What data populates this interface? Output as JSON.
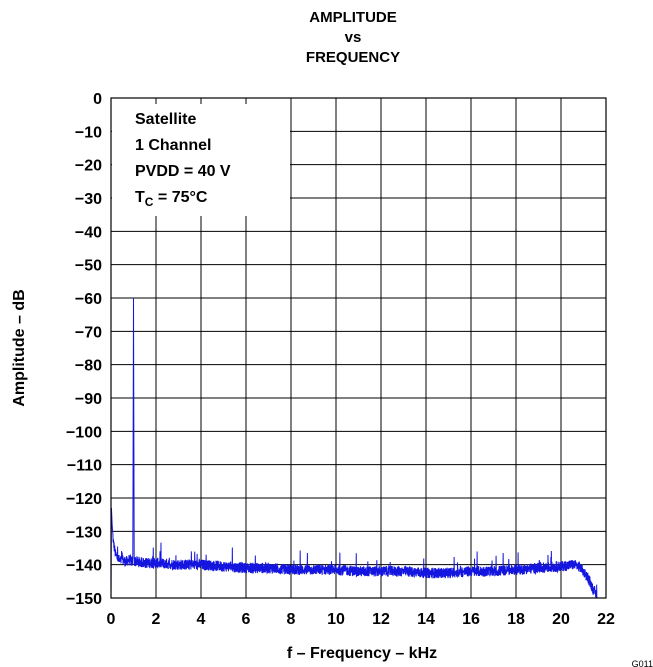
{
  "chart_data": {
    "type": "line",
    "title_lines": [
      "AMPLITUDE",
      "vs",
      "FREQUENCY"
    ],
    "xlabel": "f – Frequency – kHz",
    "ylabel": "Amplitude – dB",
    "xlim": [
      0,
      22
    ],
    "ylim": [
      -150,
      0
    ],
    "x_ticks": [
      "0",
      "2",
      "4",
      "6",
      "8",
      "10",
      "12",
      "14",
      "16",
      "18",
      "20",
      "22"
    ],
    "y_ticks": [
      "0",
      "−10",
      "−20",
      "−30",
      "−40",
      "−50",
      "−60",
      "−70",
      "−80",
      "−90",
      "−100",
      "−110",
      "−120",
      "−130",
      "−140",
      "−150"
    ],
    "grid": true,
    "annotation": {
      "lines": [
        "Satellite",
        "1 Channel",
        "PVDD = 40 V"
      ],
      "temp_prefix": "T",
      "temp_sub": "C",
      "temp_suffix": " = 75°C",
      "placement": "top-left"
    },
    "corner_code": "G011",
    "series": [
      {
        "color": "#1515e0",
        "x": [
          0.0,
          0.02,
          0.05,
          0.1,
          0.15,
          0.2,
          0.3,
          0.4,
          0.5,
          0.6,
          0.7,
          0.8,
          0.9,
          0.97,
          1.0,
          1.03,
          1.1,
          1.5,
          2,
          3,
          4,
          5,
          6,
          7,
          8,
          9,
          10,
          11,
          12,
          13,
          14,
          15,
          16,
          17,
          18,
          19,
          20,
          20.5,
          20.8,
          21.0,
          21.2,
          21.4,
          21.6
        ],
        "y": [
          -150,
          -123,
          -128,
          -133,
          -135,
          -137,
          -138,
          -139,
          -138.5,
          -139,
          -139,
          -138.5,
          -139,
          -139,
          -60,
          -139,
          -139,
          -139.5,
          -139.5,
          -140,
          -140,
          -140.5,
          -141,
          -141,
          -141.5,
          -141.5,
          -141.5,
          -142,
          -142,
          -142,
          -142.5,
          -142.5,
          -142,
          -142,
          -141.5,
          -141,
          -140.5,
          -140,
          -140.5,
          -142,
          -144,
          -147,
          -149.5
        ]
      }
    ]
  }
}
